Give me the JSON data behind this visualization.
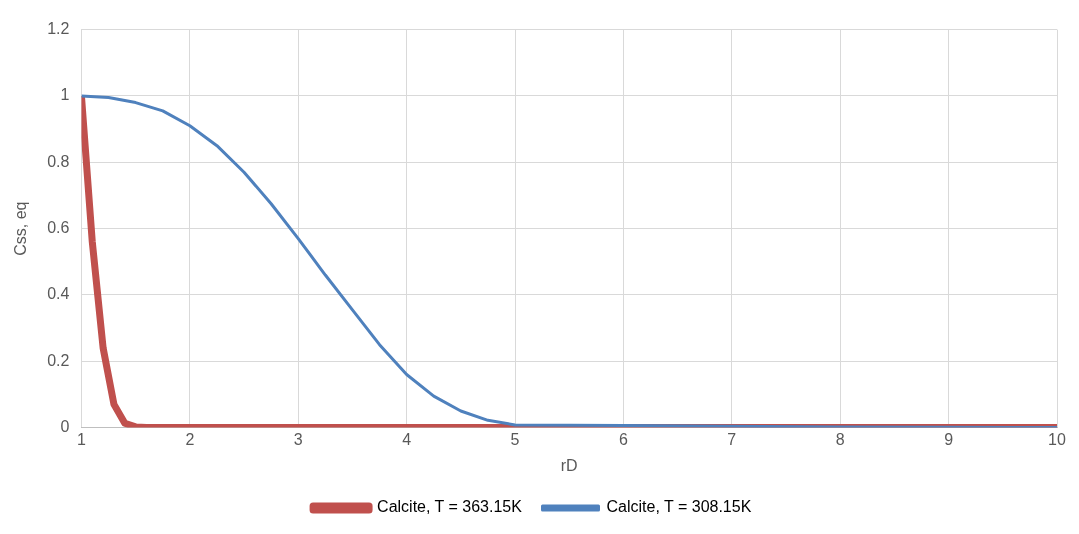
{
  "chart_data": {
    "type": "line",
    "xlabel": "rD",
    "ylabel": "Css, eq",
    "xlim": [
      1,
      10
    ],
    "xticks": [
      1,
      2,
      3,
      4,
      5,
      6,
      7,
      8,
      9,
      10
    ],
    "ylim": [
      0,
      1.2
    ],
    "yticks": [
      0,
      0.2,
      0.4,
      0.6,
      0.8,
      1,
      1.2
    ],
    "grid": true,
    "legend": "bottom",
    "marker": "none",
    "series": [
      {
        "name": "Calcite, T = 363.15K",
        "color": "#c0504d",
        "x": [
          1,
          1.1,
          1.2,
          1.3,
          1.4,
          1.5,
          1.6,
          2,
          3,
          4,
          5,
          6,
          7,
          8,
          9,
          10
        ],
        "values": [
          1,
          0.56,
          0.24,
          0.07,
          0.013,
          0.002,
          0,
          0,
          0,
          0,
          0,
          0,
          0,
          0,
          0,
          0
        ]
      },
      {
        "name": "Calcite, T = 308.15K",
        "color": "#4f81bd",
        "x": [
          1,
          1.25,
          1.5,
          1.75,
          2,
          2.25,
          2.5,
          2.75,
          3,
          3.25,
          3.5,
          3.75,
          4,
          4.25,
          4.5,
          4.75,
          5,
          6,
          7,
          8,
          9,
          10
        ],
        "values": [
          1,
          0.995,
          0.98,
          0.955,
          0.91,
          0.85,
          0.77,
          0.675,
          0.57,
          0.46,
          0.355,
          0.25,
          0.16,
          0.095,
          0.05,
          0.022,
          0.008,
          0.006,
          0.004,
          0.002,
          0.001,
          0
        ]
      }
    ]
  }
}
